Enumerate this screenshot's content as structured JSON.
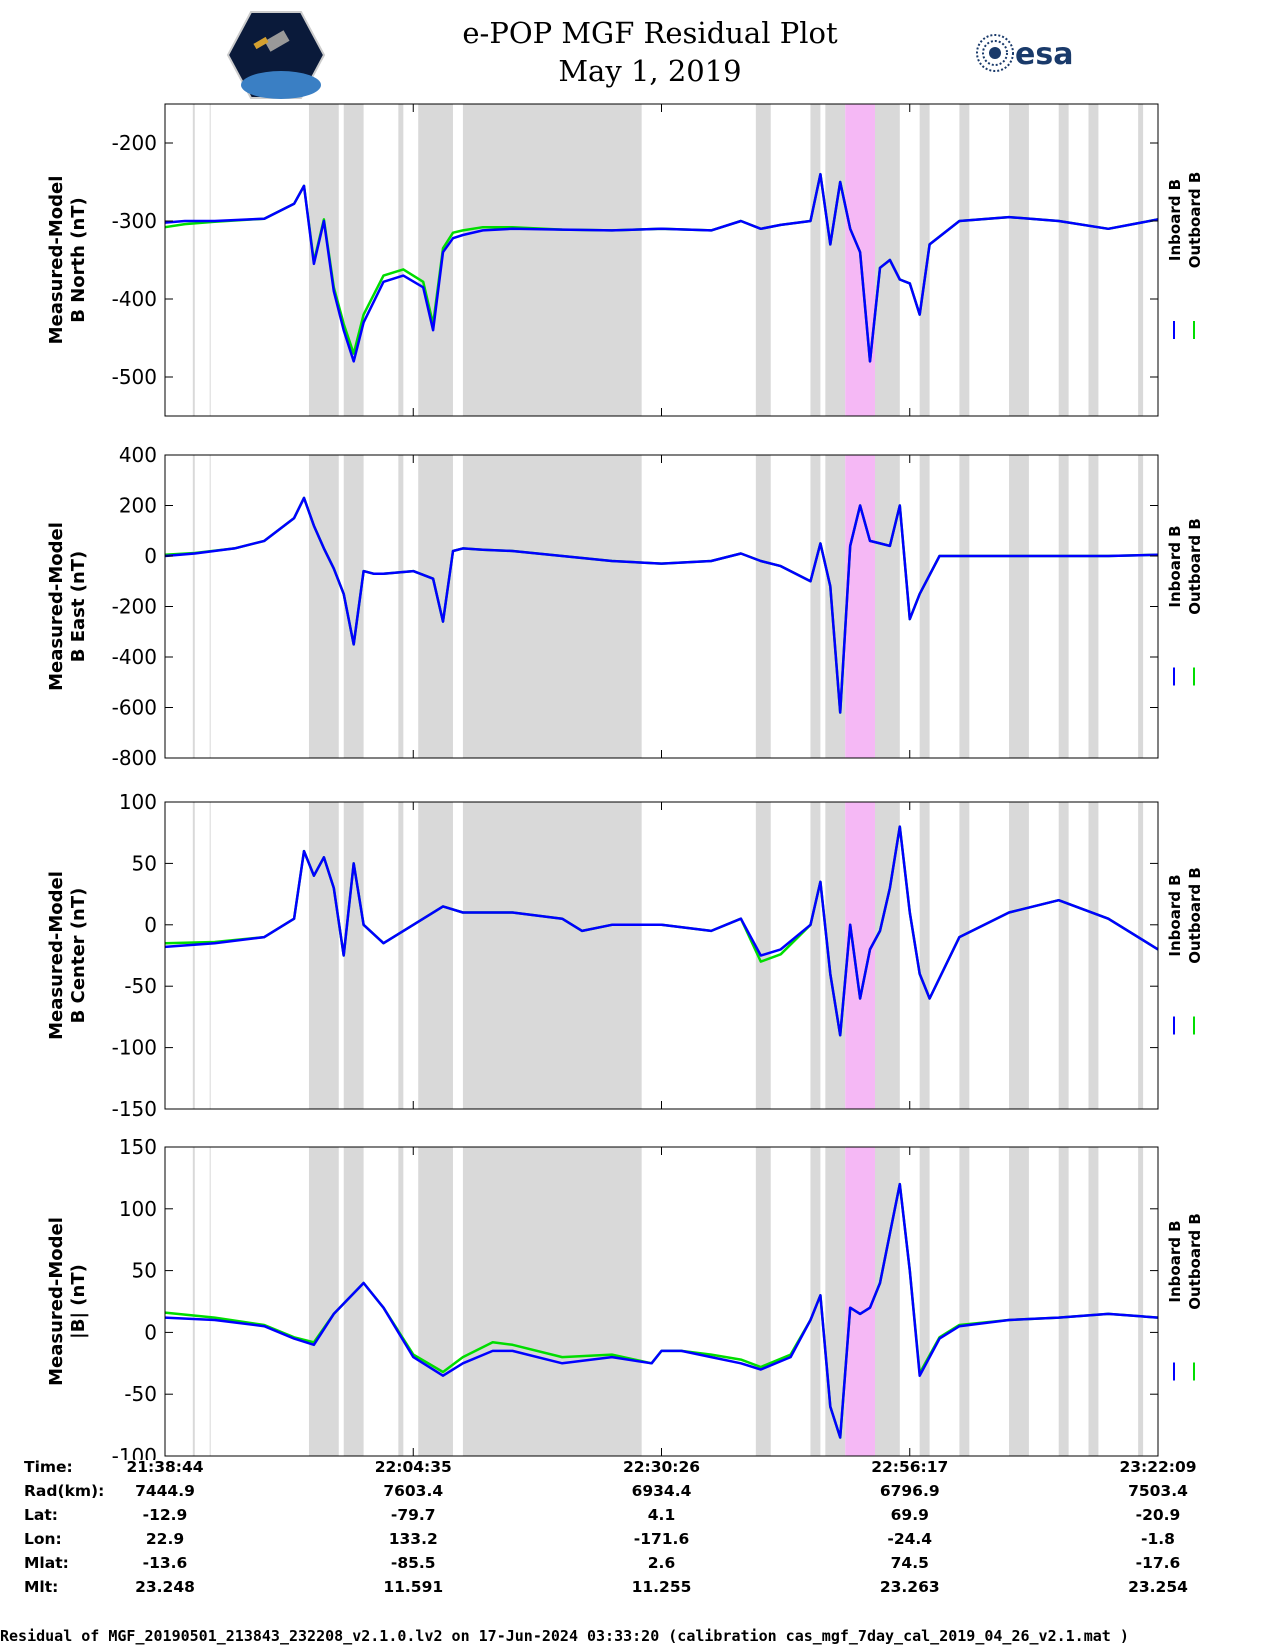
{
  "header": {
    "title_line1": "e-POP MGF Residual Plot",
    "title_line2": "May 1, 2019",
    "logo_left_icon": "cassiope-satellite-logo-icon",
    "logo_right_text": "esa"
  },
  "colors": {
    "inboard": "#0000ff",
    "outboard": "#00dd00",
    "gray_band": "#d9d9d9",
    "pink_band": "#f5b8f5"
  },
  "legend": {
    "inboard_label": "Inboard B",
    "outboard_label": "Outboard B"
  },
  "chart_data": [
    {
      "type": "line",
      "title": "",
      "xlabel": "",
      "ylabel": "Measured-Model\nB North (nT)",
      "ylim": [
        -550,
        -150
      ],
      "yticks": [
        -200,
        -300,
        -400,
        -500
      ],
      "series": [
        {
          "name": "Inboard B",
          "x": [
            0,
            0.02,
            0.05,
            0.1,
            0.13,
            0.14,
            0.15,
            0.16,
            0.17,
            0.18,
            0.19,
            0.2,
            0.22,
            0.24,
            0.26,
            0.27,
            0.28,
            0.29,
            0.3,
            0.32,
            0.35,
            0.4,
            0.45,
            0.5,
            0.55,
            0.58,
            0.6,
            0.62,
            0.65,
            0.66,
            0.67,
            0.68,
            0.69,
            0.7,
            0.71,
            0.72,
            0.73,
            0.74,
            0.75,
            0.76,
            0.77,
            0.8,
            0.85,
            0.9,
            0.95,
            1.0
          ],
          "values": [
            -302,
            -300,
            -300,
            -297,
            -278,
            -255,
            -355,
            -300,
            -390,
            -440,
            -480,
            -430,
            -378,
            -370,
            -385,
            -440,
            -340,
            -322,
            -318,
            -312,
            -310,
            -311,
            -312,
            -310,
            -312,
            -300,
            -310,
            -305,
            -300,
            -240,
            -330,
            -250,
            -310,
            -340,
            -480,
            -360,
            -350,
            -375,
            -380,
            -420,
            -330,
            -300,
            -295,
            -300,
            -310,
            -298
          ]
        },
        {
          "name": "Outboard B",
          "x": [
            0,
            0.02,
            0.05,
            0.1,
            0.13,
            0.14,
            0.15,
            0.16,
            0.17,
            0.18,
            0.19,
            0.2,
            0.22,
            0.24,
            0.26,
            0.27,
            0.28,
            0.29,
            0.3,
            0.32,
            0.35,
            0.4,
            0.45,
            0.5,
            0.55,
            0.58,
            0.6,
            0.62,
            0.65,
            0.66,
            0.67,
            0.68,
            0.69,
            0.7,
            0.71,
            0.72,
            0.73,
            0.74,
            0.75,
            0.76,
            0.77,
            0.8,
            0.85,
            0.9,
            0.95,
            1.0
          ],
          "values": [
            -308,
            -304,
            -301,
            -297,
            -278,
            -255,
            -352,
            -298,
            -385,
            -432,
            -470,
            -420,
            -370,
            -362,
            -378,
            -432,
            -335,
            -315,
            -312,
            -308,
            -308,
            -311,
            -312,
            -310,
            -312,
            -300,
            -310,
            -305,
            -300,
            -240,
            -330,
            -250,
            -310,
            -340,
            -480,
            -360,
            -350,
            -375,
            -380,
            -420,
            -330,
            -300,
            -295,
            -300,
            -310,
            -298
          ]
        }
      ]
    },
    {
      "type": "line",
      "title": "",
      "xlabel": "",
      "ylabel": "Measured-Model\nB East (nT)",
      "ylim": [
        -800,
        400
      ],
      "yticks": [
        400,
        200,
        0,
        -200,
        -400,
        -600,
        -800
      ],
      "series": [
        {
          "name": "Inboard B",
          "x": [
            0,
            0.03,
            0.07,
            0.1,
            0.13,
            0.14,
            0.15,
            0.16,
            0.17,
            0.18,
            0.19,
            0.2,
            0.21,
            0.22,
            0.25,
            0.27,
            0.28,
            0.29,
            0.3,
            0.32,
            0.35,
            0.4,
            0.45,
            0.5,
            0.55,
            0.58,
            0.6,
            0.62,
            0.65,
            0.66,
            0.67,
            0.68,
            0.69,
            0.7,
            0.71,
            0.72,
            0.73,
            0.74,
            0.75,
            0.76,
            0.78,
            0.8,
            0.85,
            0.9,
            0.95,
            1.0
          ],
          "values": [
            0,
            10,
            30,
            60,
            150,
            230,
            120,
            30,
            -50,
            -150,
            -350,
            -60,
            -70,
            -70,
            -60,
            -90,
            -260,
            20,
            30,
            25,
            20,
            0,
            -20,
            -30,
            -20,
            10,
            -20,
            -40,
            -100,
            50,
            -120,
            -620,
            40,
            200,
            60,
            50,
            40,
            200,
            -250,
            -150,
            0,
            0,
            0,
            0,
            0,
            5
          ]
        },
        {
          "name": "Outboard B",
          "x": [
            0,
            0.03,
            0.07,
            0.1,
            0.13,
            0.14,
            0.15,
            0.16,
            0.17,
            0.18,
            0.19,
            0.2,
            0.21,
            0.22,
            0.25,
            0.27,
            0.28,
            0.29,
            0.3,
            0.32,
            0.35,
            0.4,
            0.45,
            0.5,
            0.55,
            0.58,
            0.6,
            0.62,
            0.65,
            0.66,
            0.67,
            0.68,
            0.69,
            0.7,
            0.71,
            0.72,
            0.73,
            0.74,
            0.75,
            0.76,
            0.78,
            0.8,
            0.85,
            0.9,
            0.95,
            1.0
          ],
          "values": [
            5,
            12,
            30,
            60,
            150,
            230,
            120,
            30,
            -50,
            -150,
            -350,
            -60,
            -70,
            -70,
            -60,
            -90,
            -260,
            20,
            30,
            25,
            20,
            0,
            -20,
            -30,
            -20,
            10,
            -20,
            -40,
            -100,
            50,
            -120,
            -620,
            40,
            200,
            60,
            50,
            40,
            200,
            -250,
            -150,
            0,
            0,
            0,
            0,
            0,
            5
          ]
        }
      ]
    },
    {
      "type": "line",
      "title": "",
      "xlabel": "",
      "ylabel": "Measured-Model\nB Center (nT)",
      "ylim": [
        -150,
        100
      ],
      "yticks": [
        100,
        50,
        0,
        -50,
        -100,
        -150
      ],
      "series": [
        {
          "name": "Inboard B",
          "x": [
            0,
            0.05,
            0.1,
            0.13,
            0.14,
            0.15,
            0.16,
            0.17,
            0.18,
            0.19,
            0.2,
            0.22,
            0.25,
            0.28,
            0.3,
            0.35,
            0.4,
            0.42,
            0.45,
            0.5,
            0.55,
            0.58,
            0.6,
            0.62,
            0.65,
            0.66,
            0.67,
            0.68,
            0.69,
            0.7,
            0.71,
            0.72,
            0.73,
            0.74,
            0.75,
            0.76,
            0.77,
            0.8,
            0.85,
            0.9,
            0.95,
            1.0
          ],
          "values": [
            -18,
            -15,
            -10,
            5,
            60,
            40,
            55,
            30,
            -25,
            50,
            0,
            -15,
            0,
            15,
            10,
            10,
            5,
            -5,
            0,
            0,
            -5,
            5,
            -25,
            -20,
            0,
            35,
            -40,
            -90,
            0,
            -60,
            -20,
            -5,
            30,
            80,
            10,
            -40,
            -60,
            -10,
            10,
            20,
            5,
            -20
          ]
        },
        {
          "name": "Outboard B",
          "x": [
            0,
            0.05,
            0.1,
            0.13,
            0.14,
            0.15,
            0.16,
            0.17,
            0.18,
            0.19,
            0.2,
            0.22,
            0.25,
            0.28,
            0.3,
            0.35,
            0.4,
            0.42,
            0.45,
            0.5,
            0.55,
            0.58,
            0.6,
            0.62,
            0.65,
            0.66,
            0.67,
            0.68,
            0.69,
            0.7,
            0.71,
            0.72,
            0.73,
            0.74,
            0.75,
            0.76,
            0.77,
            0.8,
            0.85,
            0.9,
            0.95,
            1.0
          ],
          "values": [
            -15,
            -14,
            -10,
            5,
            60,
            40,
            55,
            30,
            -25,
            50,
            0,
            -15,
            0,
            15,
            10,
            10,
            5,
            -5,
            0,
            0,
            -5,
            5,
            -30,
            -24,
            0,
            35,
            -40,
            -90,
            0,
            -60,
            -20,
            -5,
            30,
            80,
            10,
            -40,
            -60,
            -10,
            10,
            20,
            5,
            -20
          ]
        }
      ]
    },
    {
      "type": "line",
      "title": "",
      "xlabel": "",
      "ylabel": "Measured-Model\n|B| (nT)",
      "ylim": [
        -100,
        150
      ],
      "yticks": [
        150,
        100,
        50,
        0,
        -50,
        -100
      ],
      "series": [
        {
          "name": "Inboard B",
          "x": [
            0,
            0.05,
            0.1,
            0.13,
            0.15,
            0.17,
            0.2,
            0.22,
            0.25,
            0.28,
            0.3,
            0.33,
            0.35,
            0.4,
            0.45,
            0.49,
            0.5,
            0.52,
            0.55,
            0.58,
            0.6,
            0.63,
            0.65,
            0.66,
            0.67,
            0.68,
            0.69,
            0.7,
            0.71,
            0.72,
            0.73,
            0.74,
            0.75,
            0.76,
            0.78,
            0.8,
            0.85,
            0.9,
            0.95,
            1.0
          ],
          "values": [
            12,
            10,
            5,
            -5,
            -10,
            15,
            40,
            20,
            -20,
            -35,
            -25,
            -15,
            -15,
            -25,
            -20,
            -25,
            -15,
            -15,
            -20,
            -25,
            -30,
            -20,
            10,
            30,
            -60,
            -85,
            20,
            15,
            20,
            40,
            80,
            120,
            50,
            -35,
            -5,
            5,
            10,
            12,
            15,
            12
          ]
        },
        {
          "name": "Outboard B",
          "x": [
            0,
            0.05,
            0.1,
            0.13,
            0.15,
            0.17,
            0.2,
            0.22,
            0.25,
            0.28,
            0.3,
            0.33,
            0.35,
            0.4,
            0.45,
            0.49,
            0.5,
            0.52,
            0.55,
            0.58,
            0.6,
            0.63,
            0.65,
            0.66,
            0.67,
            0.68,
            0.69,
            0.7,
            0.71,
            0.72,
            0.73,
            0.74,
            0.75,
            0.76,
            0.78,
            0.8,
            0.85,
            0.9,
            0.95,
            1.0
          ],
          "values": [
            16,
            12,
            6,
            -4,
            -8,
            15,
            40,
            20,
            -18,
            -32,
            -20,
            -8,
            -10,
            -20,
            -18,
            -25,
            -15,
            -15,
            -18,
            -22,
            -28,
            -18,
            10,
            30,
            -60,
            -85,
            20,
            15,
            20,
            40,
            80,
            120,
            50,
            -33,
            -4,
            6,
            10,
            12,
            15,
            12
          ]
        }
      ]
    }
  ],
  "xaxis": {
    "tick_fracs": [
      0,
      0.25,
      0.5,
      0.75,
      1.0
    ],
    "gray_bands": [
      [
        0.028,
        0.03
      ],
      [
        0.045,
        0.046
      ],
      [
        0.145,
        0.175
      ],
      [
        0.18,
        0.2
      ],
      [
        0.235,
        0.24
      ],
      [
        0.255,
        0.29
      ],
      [
        0.3,
        0.48
      ],
      [
        0.595,
        0.61
      ],
      [
        0.65,
        0.66
      ],
      [
        0.665,
        0.685
      ],
      [
        0.69,
        0.74
      ],
      [
        0.76,
        0.77
      ],
      [
        0.8,
        0.81
      ],
      [
        0.85,
        0.87
      ],
      [
        0.9,
        0.91
      ],
      [
        0.93,
        0.94
      ],
      [
        0.98,
        0.985
      ]
    ],
    "pink_bands": [
      [
        0.685,
        0.715
      ]
    ]
  },
  "table": {
    "labels": [
      "Time:",
      "Rad(km):",
      "Lat:",
      "Lon:",
      "Mlat:",
      "Mlt:"
    ],
    "columns": [
      [
        "21:38:44",
        "7444.9",
        "-12.9",
        "22.9",
        "-13.6",
        "23.248"
      ],
      [
        "22:04:35",
        "7603.4",
        "-79.7",
        "133.2",
        "-85.5",
        "11.591"
      ],
      [
        "22:30:26",
        "6934.4",
        "4.1",
        "-171.6",
        "2.6",
        "11.255"
      ],
      [
        "22:56:17",
        "6796.9",
        "69.9",
        "-24.4",
        "74.5",
        "23.263"
      ],
      [
        "23:22:09",
        "7503.4",
        "-20.9",
        "-1.8",
        "-17.6",
        "23.254"
      ]
    ]
  },
  "footer": "Residual of MGF_20190501_213843_232208_v2.1.0.lv2 on 17-Jun-2024 03:33:20 (calibration cas_mgf_7day_cal_2019_04_26_v2.1.mat )"
}
